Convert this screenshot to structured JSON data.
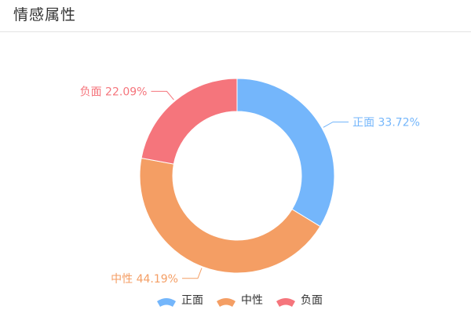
{
  "panel": {
    "title": "情感属性"
  },
  "chart_data": {
    "type": "pie",
    "donut": true,
    "categories": [
      "正面",
      "中性",
      "负面"
    ],
    "values": [
      33.72,
      44.19,
      22.09
    ],
    "labels": [
      "正面 33.72%",
      "中性 44.19%",
      "负面 22.09%"
    ],
    "colors": [
      "#74b6fb",
      "#f49e64",
      "#f5757c"
    ],
    "legend": {
      "position": "bottom",
      "items": [
        "正面",
        "中性",
        "负面"
      ]
    }
  }
}
